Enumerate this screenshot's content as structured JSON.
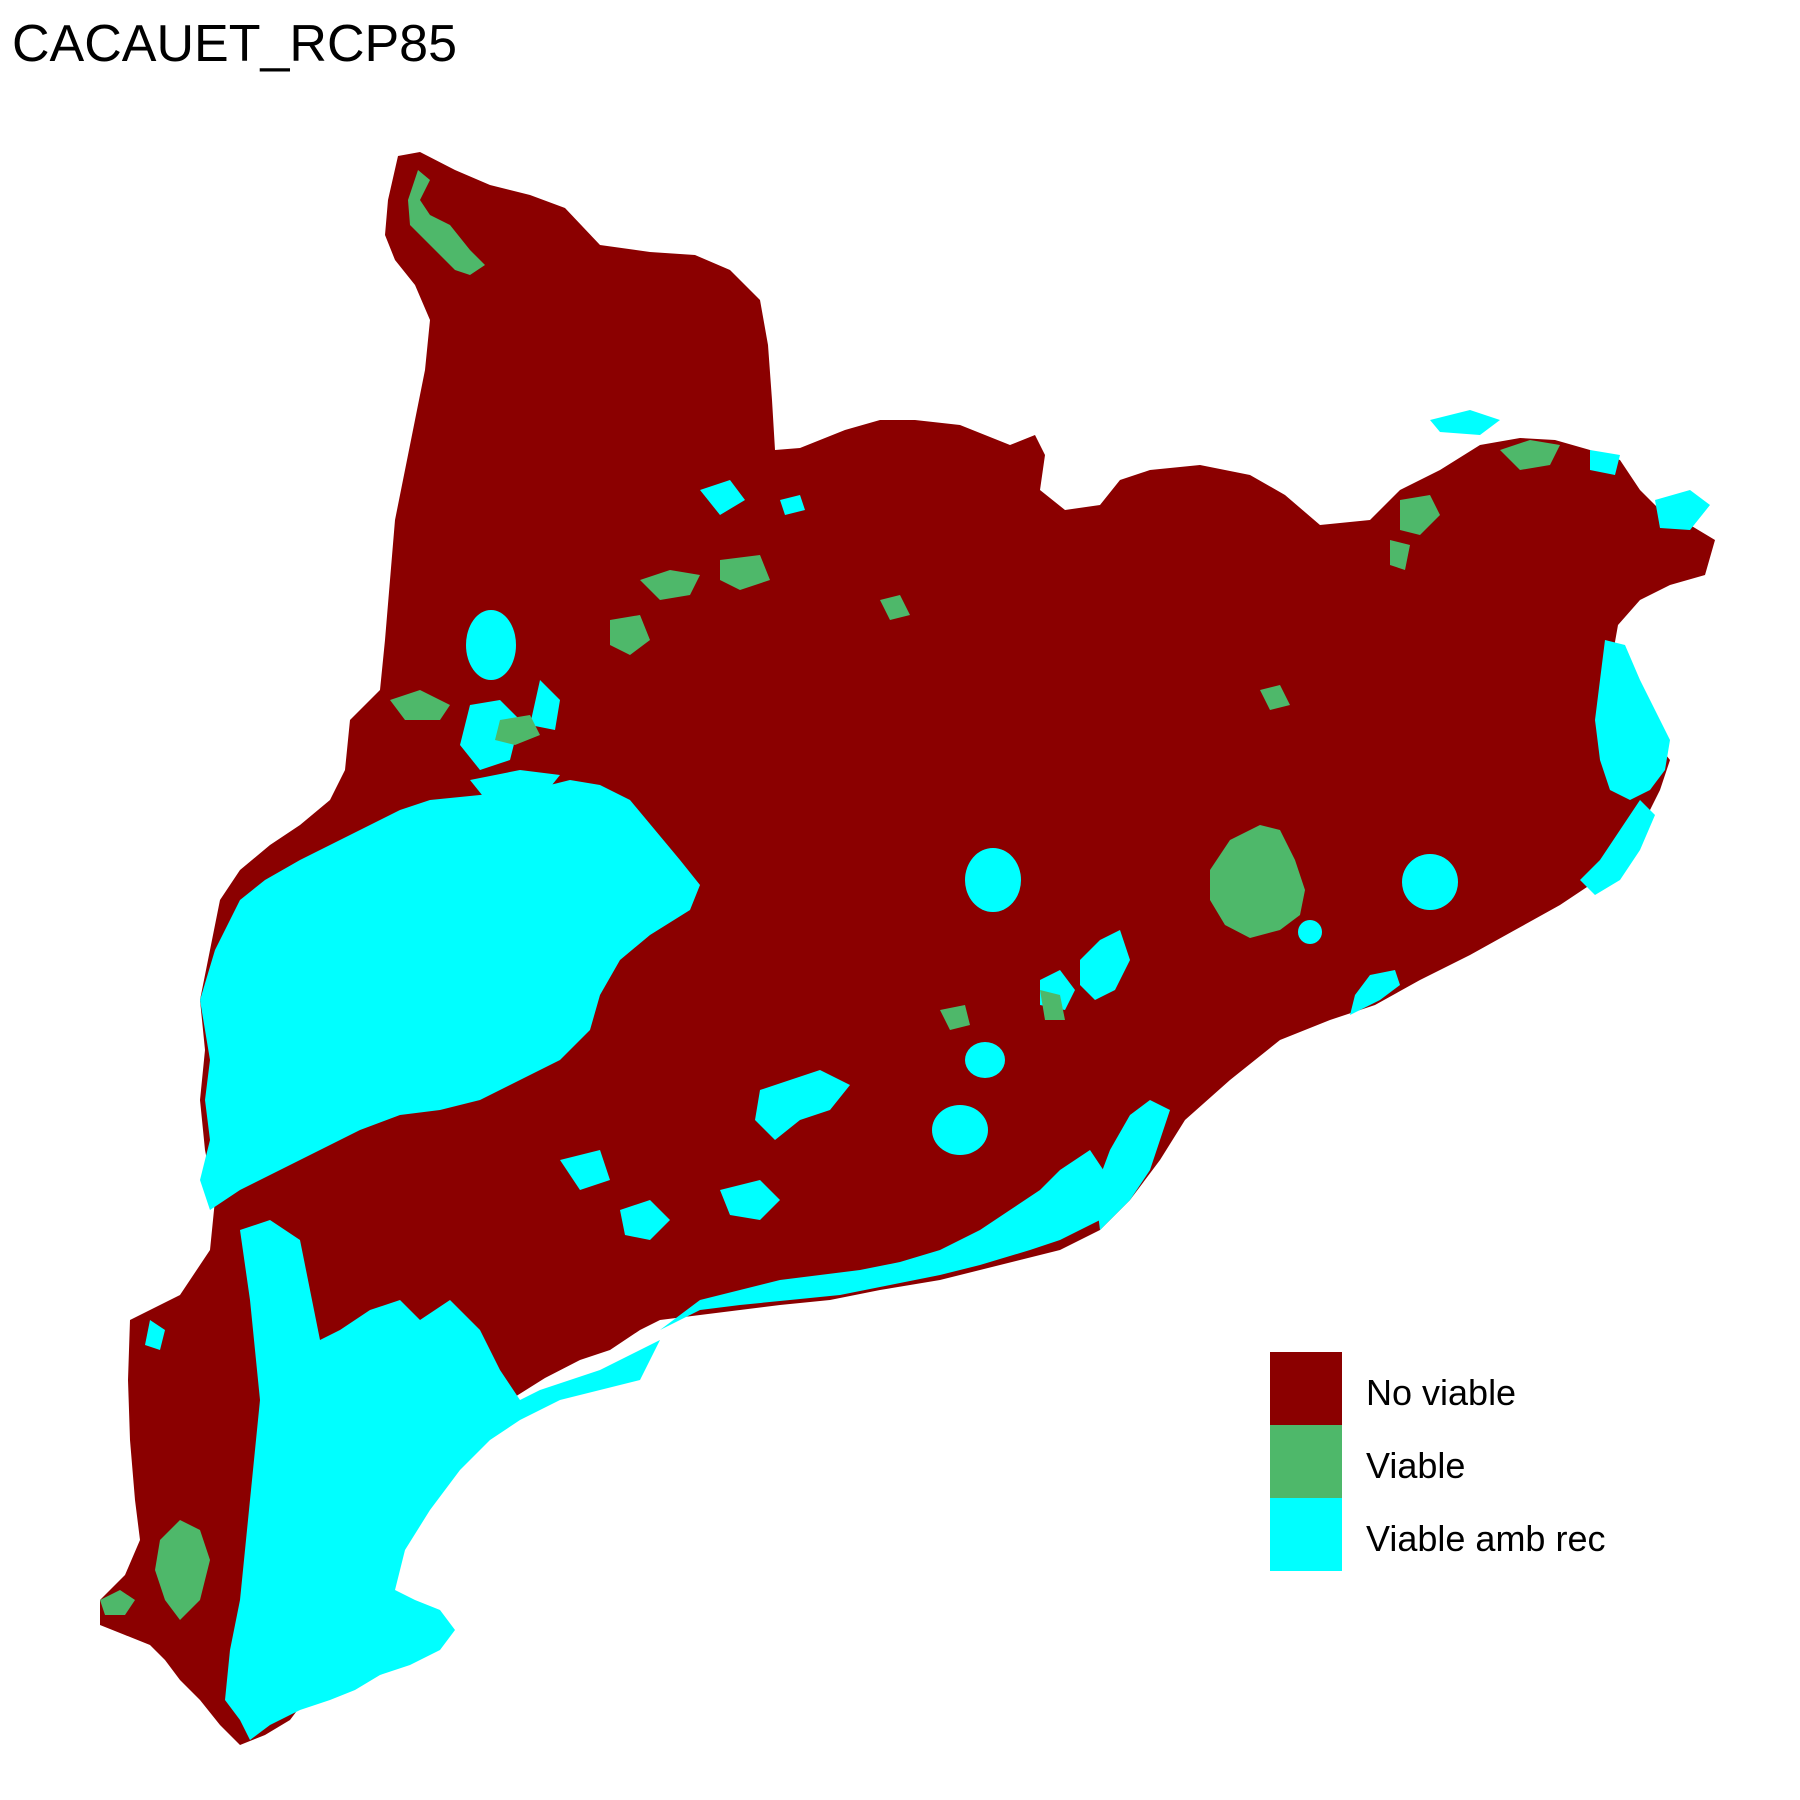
{
  "map": {
    "title": "CACAUET_RCP85",
    "legend": [
      {
        "label": "No viable",
        "color": "#8b0000"
      },
      {
        "label": "Viable",
        "color": "#4eb86a"
      },
      {
        "label": "Viable amb rec",
        "color": "#00ffff"
      }
    ]
  }
}
